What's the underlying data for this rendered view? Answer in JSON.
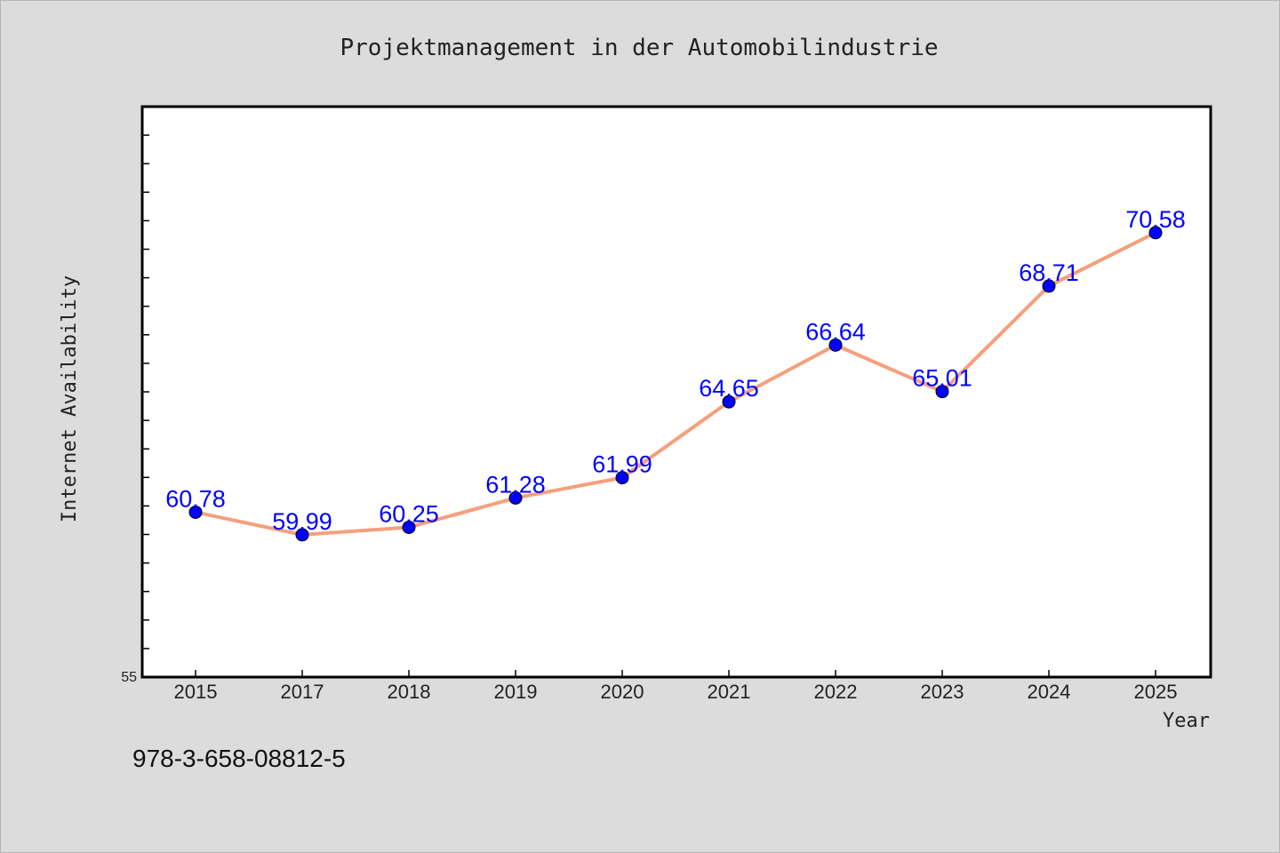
{
  "chart_data": {
    "type": "line",
    "title": "Projektmanagement in der Automobilindustrie",
    "xlabel": "Year",
    "ylabel": "Internet Availability",
    "categories": [
      "2015",
      "2017",
      "2018",
      "2019",
      "2020",
      "2021",
      "2022",
      "2023",
      "2024",
      "2025"
    ],
    "series": [
      {
        "values": [
          60.78,
          59.99,
          60.25,
          61.28,
          61.99,
          64.65,
          66.64,
          65.01,
          68.71,
          70.58
        ],
        "data_labels": [
          "60.78",
          "59.99",
          "60.25",
          "61.28",
          "61.99",
          "64.65",
          "66.64",
          "65.01",
          "68.71",
          "70.58"
        ]
      }
    ],
    "ylim": [
      55,
      75
    ],
    "y_tick_labels": [
      "55"
    ],
    "grid": false,
    "colors": {
      "line": "#f4a07c",
      "marker": "#0000ff",
      "marker_edge": "#000000",
      "data_label": "#0000ff",
      "plot_background": "#ffffff",
      "figure_background": "#dcdcdc"
    }
  },
  "footer": {
    "isbn": "978-3-658-08812-5"
  }
}
